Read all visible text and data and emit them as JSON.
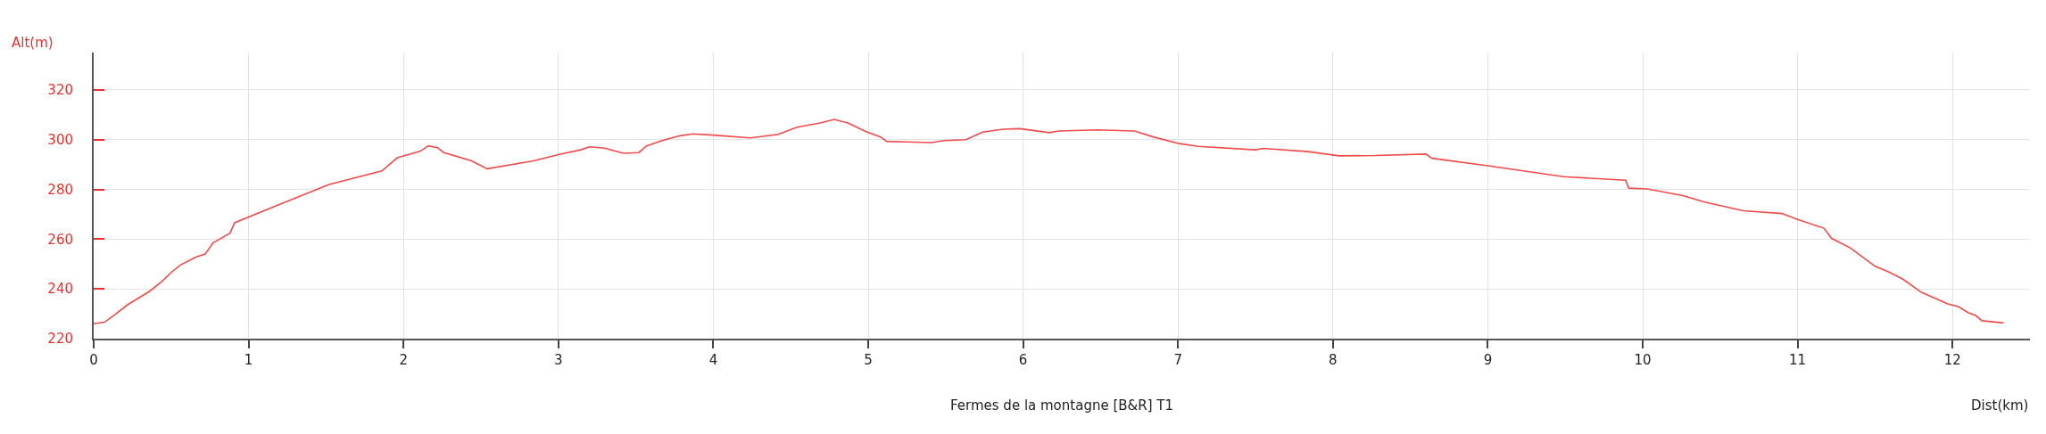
{
  "chart_data": {
    "type": "line",
    "title": "Fermes de la montagne [B&R] T1",
    "xlabel": "Dist(km)",
    "ylabel": "Alt(m)",
    "x": [
      0,
      0.07,
      0.14,
      0.22,
      0.36,
      0.44,
      0.5,
      0.56,
      0.66,
      0.72,
      0.77,
      0.88,
      0.91,
      1.17,
      1.52,
      1.86,
      1.96,
      2.11,
      2.16,
      2.22,
      2.26,
      2.44,
      2.54,
      2.84,
      3.0,
      3.15,
      3.2,
      3.3,
      3.35,
      3.42,
      3.52,
      3.57,
      3.67,
      3.78,
      3.87,
      4.0,
      4.24,
      4.42,
      4.54,
      4.69,
      4.78,
      4.87,
      4.98,
      5.08,
      5.12,
      5.41,
      5.49,
      5.63,
      5.74,
      5.87,
      5.98,
      6.17,
      6.23,
      6.48,
      6.72,
      6.84,
      7.01,
      7.13,
      7.5,
      7.55,
      7.84,
      8.04,
      8.27,
      8.6,
      8.64,
      9.0,
      9.49,
      9.89,
      9.91,
      10.03,
      10.26,
      10.4,
      10.65,
      10.9,
      11.0,
      11.17,
      11.22,
      11.34,
      11.5,
      11.59,
      11.68,
      11.8,
      11.97,
      12.04,
      12.1,
      12.15,
      12.19,
      12.33
    ],
    "series": [
      {
        "color": "#f04a4a",
        "values": [
          226,
          226.6,
          229.8,
          233.7,
          239,
          243,
          246.6,
          249.6,
          252.8,
          254,
          258.5,
          262.4,
          266.6,
          273.2,
          282,
          287.4,
          292.7,
          295.4,
          297.5,
          296.8,
          294.8,
          291.5,
          288.3,
          291.5,
          294,
          296,
          297.1,
          296.6,
          295.7,
          294.5,
          294.8,
          297.5,
          299.6,
          301.5,
          302.3,
          301.8,
          300.7,
          302.1,
          305,
          306.7,
          308.1,
          306.7,
          303.4,
          301.1,
          299.3,
          298.8,
          299.6,
          300,
          303,
          304.2,
          304.4,
          302.8,
          303.5,
          303.9,
          303.5,
          301.1,
          298.4,
          297.3,
          295.9,
          296.5,
          295.2,
          293.5,
          293.6,
          294.2,
          292.5,
          289.5,
          285.1,
          283.7,
          280.5,
          280.2,
          277.5,
          274.9,
          271.4,
          270.3,
          267.9,
          264.4,
          260.3,
          256.5,
          249.1,
          246.8,
          243.9,
          238.6,
          234,
          232.8,
          230.5,
          229.3,
          227.2,
          226.3
        ]
      }
    ],
    "xlim": [
      0,
      12.5
    ],
    "xticks": [
      0,
      1,
      2,
      3,
      4,
      5,
      6,
      7,
      8,
      9,
      10,
      11,
      12
    ],
    "ylim": [
      220,
      335
    ],
    "yticks": [
      220,
      240,
      260,
      280,
      300,
      320
    ],
    "grid": true,
    "marker": "none",
    "line_style": "solid"
  }
}
